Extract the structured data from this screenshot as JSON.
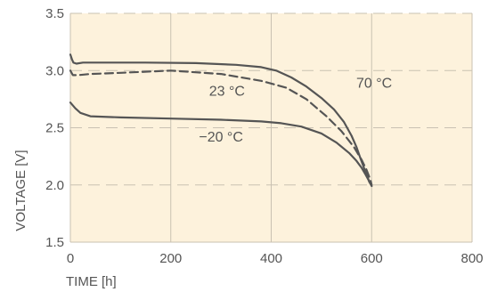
{
  "chart_data": {
    "type": "line",
    "xlabel": "TIME [h]",
    "ylabel": "VOLTAGE [V]",
    "xlim": [
      0,
      800
    ],
    "ylim": [
      1.5,
      3.5
    ],
    "xticks": [
      "0",
      "200",
      "400",
      "600",
      "800"
    ],
    "yticks": [
      "1.5",
      "2.0",
      "2.5",
      "3.0",
      "3.5"
    ],
    "grid": {
      "vertical": "solid",
      "horizontal": "dashed"
    },
    "background_color": "#fdf2dc",
    "grid_color": "#c9c1b2",
    "line_color": "#555555",
    "series": [
      {
        "name": "70°C",
        "style": "solid",
        "x": [
          0,
          3,
          6,
          12,
          25,
          60,
          150,
          250,
          330,
          380,
          410,
          440,
          470,
          500,
          525,
          545,
          560,
          570,
          578,
          583,
          587,
          591,
          595,
          600
        ],
        "y": [
          3.14,
          3.1,
          3.07,
          3.06,
          3.07,
          3.07,
          3.07,
          3.065,
          3.05,
          3.03,
          3.0,
          2.94,
          2.86,
          2.76,
          2.66,
          2.55,
          2.43,
          2.33,
          2.23,
          2.17,
          2.12,
          2.08,
          2.03,
          1.99
        ]
      },
      {
        "name": "23°C",
        "style": "dashed",
        "x": [
          0,
          5,
          15,
          40,
          100,
          200,
          300,
          380,
          430,
          470,
          510,
          540,
          565,
          580,
          590,
          597,
          600
        ],
        "y": [
          3.0,
          2.96,
          2.96,
          2.97,
          2.98,
          3.0,
          2.97,
          2.91,
          2.85,
          2.75,
          2.6,
          2.47,
          2.33,
          2.22,
          2.13,
          2.05,
          2.0
        ]
      },
      {
        "name": "-20°C",
        "style": "solid",
        "x": [
          0,
          10,
          20,
          40,
          100,
          200,
          300,
          380,
          420,
          460,
          500,
          530,
          555,
          570,
          580,
          588,
          593,
          597,
          600
        ],
        "y": [
          2.72,
          2.67,
          2.63,
          2.6,
          2.59,
          2.58,
          2.57,
          2.555,
          2.54,
          2.51,
          2.45,
          2.37,
          2.28,
          2.21,
          2.15,
          2.09,
          2.05,
          2.02,
          2.0
        ]
      }
    ],
    "annotations": [
      {
        "text": "70 °C",
        "series": "70°C",
        "x": 605,
        "y": 2.85
      },
      {
        "text": "23 °C",
        "series": "23°C",
        "x": 312,
        "y": 2.78
      },
      {
        "text": "−20 °C",
        "series": "-20°C",
        "x": 300,
        "y": 2.38
      }
    ]
  }
}
